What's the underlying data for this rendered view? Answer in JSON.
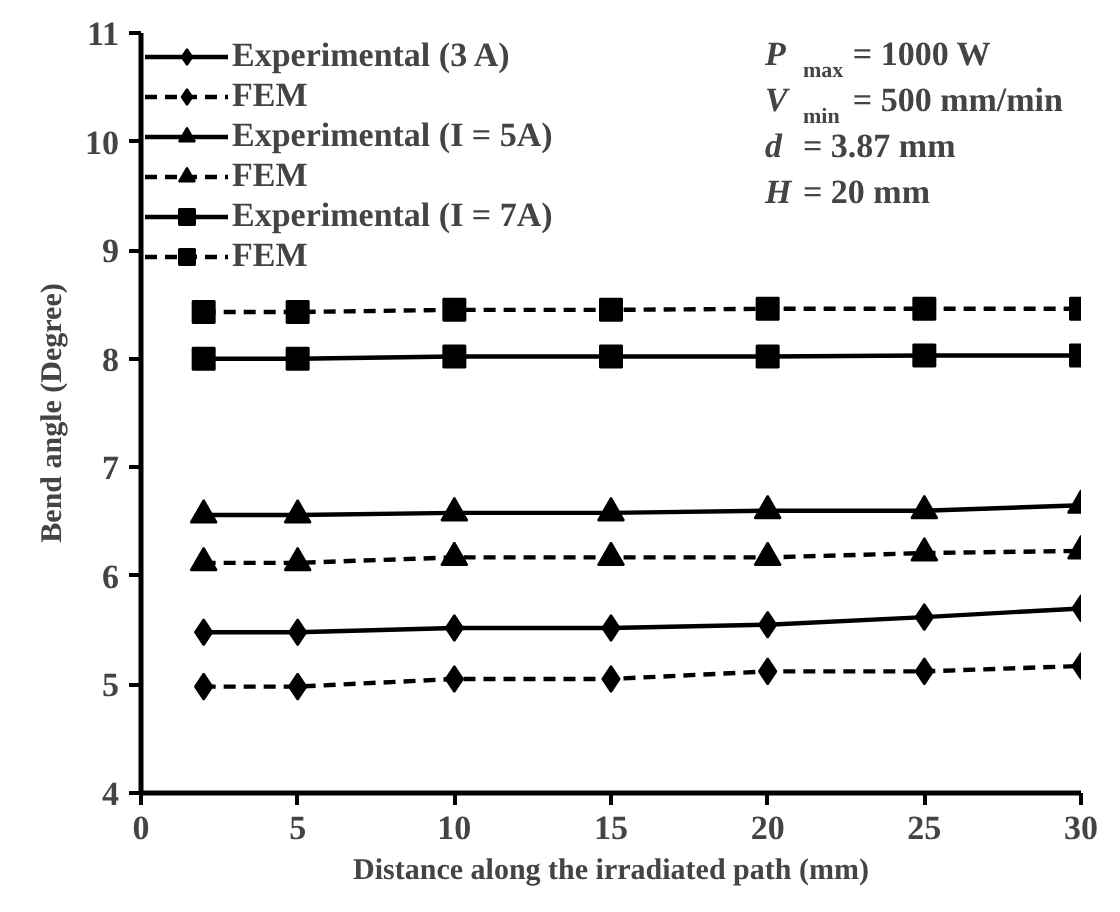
{
  "chart_data": {
    "type": "line",
    "xlabel": "Distance along the irradiated path (mm)",
    "ylabel": "Bend angle (Degree)",
    "x": [
      2,
      5,
      10,
      15,
      20,
      25,
      30
    ],
    "series": [
      {
        "name": "Experimental (3 A)",
        "color": "#000000",
        "marker": "diamond",
        "line_style": "solid",
        "values": [
          5.48,
          5.48,
          5.52,
          5.52,
          5.55,
          5.62,
          5.7
        ]
      },
      {
        "name": "FEM",
        "color": "#000000",
        "marker": "diamond",
        "line_style": "dashed",
        "values": [
          4.98,
          4.98,
          5.05,
          5.05,
          5.12,
          5.12,
          5.17
        ]
      },
      {
        "name": "Experimental (I = 5A)",
        "color": "#000000",
        "marker": "triangle",
        "line_style": "solid",
        "values": [
          6.56,
          6.56,
          6.58,
          6.58,
          6.6,
          6.6,
          6.65
        ]
      },
      {
        "name": "FEM",
        "color": "#000000",
        "marker": "triangle",
        "line_style": "dashed",
        "values": [
          6.12,
          6.12,
          6.17,
          6.17,
          6.17,
          6.21,
          6.23
        ]
      },
      {
        "name": "Experimental (I = 7A)",
        "color": "#000000",
        "marker": "square",
        "line_style": "solid",
        "values": [
          8.0,
          8.0,
          8.02,
          8.02,
          8.02,
          8.03,
          8.03
        ]
      },
      {
        "name": "FEM",
        "color": "#000000",
        "marker": "square",
        "line_style": "dashed",
        "values": [
          8.43,
          8.43,
          8.45,
          8.45,
          8.46,
          8.46,
          8.46
        ]
      }
    ],
    "xlim": [
      0,
      30
    ],
    "ylim": [
      4,
      11
    ],
    "xticks": [
      0,
      5,
      10,
      15,
      20,
      25,
      30
    ],
    "yticks": [
      4,
      5,
      6,
      7,
      8,
      9,
      10,
      11
    ],
    "grid": false,
    "legend": "top left",
    "annotations": [
      "P$_{max}$ = 1000 W",
      "V$_{min}$ =  500 mm/min",
      "d = 3.87 mm",
      "H = 20 mm"
    ]
  }
}
